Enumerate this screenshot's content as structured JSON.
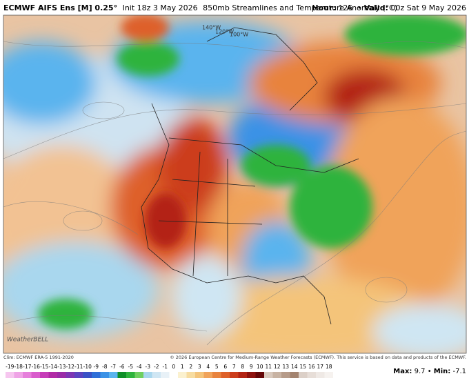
{
  "header": {
    "title": "ECMWF AIFS Ens [M] 0.25°",
    "init": "Init 18z 3 May 2026",
    "product": "850mb Streamlines and Temperature Anomaly (°C)",
    "hour_label": "Hour:",
    "hour": 126,
    "valid_label": "Valid:",
    "valid": "00z Sat 9 May 2026"
  },
  "map": {
    "meridian_labels": [
      "140°W",
      "120°W",
      "100°W"
    ],
    "logo": "WeatherBELL"
  },
  "footer": {
    "climatology": "Clim: ECMWF ERA-5 1991-2020",
    "copyright": "© 2026 European Centre for Medium-Range Weather Forecasts (ECMWF). This service is based on data and products of the ECMWF."
  },
  "colorbar": {
    "labels": [
      -19,
      -18,
      -17,
      -16,
      -15,
      -14,
      -13,
      -12,
      -11,
      -10,
      -9,
      -8,
      -7,
      -6,
      -5,
      -4,
      -3,
      -2,
      -1,
      0,
      1,
      2,
      3,
      4,
      5,
      6,
      7,
      8,
      9,
      10,
      11,
      12,
      13,
      14,
      15,
      16,
      17,
      18
    ],
    "colors": [
      "#f6c6ef",
      "#efa3e6",
      "#e67fdb",
      "#d95ccc",
      "#c63cb8",
      "#b12aa6",
      "#9b2ba8",
      "#7d36b4",
      "#5b44c0",
      "#3a52c6",
      "#2f6fd8",
      "#3b92e6",
      "#5ab4ee",
      "#0f8f28",
      "#2fb33c",
      "#70d060",
      "#a9d7ee",
      "#cfe6f3",
      "#e8f1f7",
      "#ffffff",
      "#fbf1cf",
      "#f7dca0",
      "#f4c47a",
      "#f0a35a",
      "#e8833e",
      "#de6129",
      "#cc3e1c",
      "#b32414",
      "#8e120e",
      "#640607",
      "#d8c9bd",
      "#c8b3a3",
      "#b69b89",
      "#a3836f",
      "#dcd0c8",
      "#e7ded8",
      "#efe9e5",
      "#f6f2ef"
    ]
  },
  "stats": {
    "max_label": "Max:",
    "max": 9.7,
    "min_label": "Min:",
    "min": -7.1
  }
}
